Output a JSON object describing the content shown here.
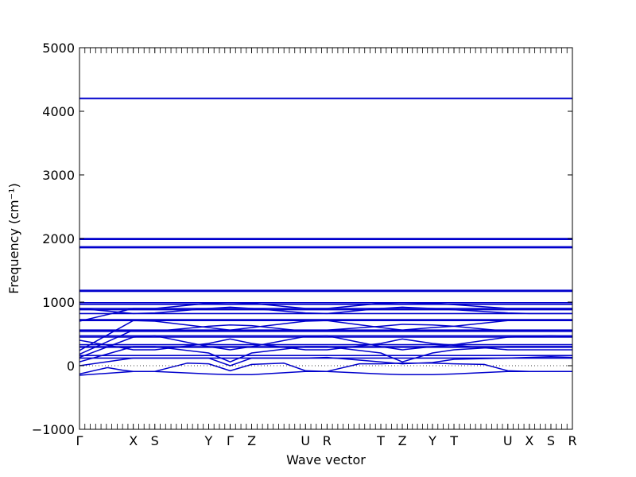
{
  "chart_data": {
    "type": "line",
    "title": "",
    "xlabel": "Wave vector",
    "ylabel": "Frequency (cm⁻¹)",
    "ylim": [
      -1000,
      5000
    ],
    "yticks": [
      -1000,
      0,
      1000,
      2000,
      3000,
      4000,
      5000
    ],
    "ytick_labels": [
      "−1000",
      "0",
      "1000",
      "2000",
      "3000",
      "4000",
      "5000"
    ],
    "xlim": [
      0,
      22.9
    ],
    "high_symmetry_points": [
      {
        "label": "Γ",
        "x": 0
      },
      {
        "label": "X",
        "x": 2.5
      },
      {
        "label": "S",
        "x": 3.5
      },
      {
        "label": "Y",
        "x": 6.0
      },
      {
        "label": "Γ",
        "x": 7.0
      },
      {
        "label": "Z",
        "x": 8.0
      },
      {
        "label": "U",
        "x": 10.5
      },
      {
        "label": "R",
        "x": 11.5
      },
      {
        "label": "T",
        "x": 14.0
      },
      {
        "label": "Z",
        "x": 15.0
      },
      {
        "label": "Y",
        "x": 16.4
      },
      {
        "label": "T",
        "x": 17.4
      },
      {
        "label": "U",
        "x": 19.9
      },
      {
        "label": "X",
        "x": 20.9
      },
      {
        "label": "S",
        "x": 21.9
      },
      {
        "label": "R",
        "x": 22.9
      }
    ],
    "zero_line": true,
    "series_color": "#0000cc",
    "flat_bands": [
      4200,
      4205,
      2000,
      1985,
      1870,
      1855,
      1185,
      1170,
      990,
      965,
      900,
      880,
      820,
      725,
      710,
      560,
      540,
      470,
      450,
      330,
      300,
      290,
      160,
      120
    ],
    "dispersive_bands": [
      {
        "points": [
          [
            0,
            -150
          ],
          [
            2.5,
            -90
          ],
          [
            3.5,
            -90
          ],
          [
            6.0,
            -130
          ],
          [
            7.0,
            -140
          ],
          [
            8.0,
            -140
          ],
          [
            10.5,
            -90
          ],
          [
            11.5,
            -90
          ],
          [
            14.0,
            -130
          ],
          [
            15.0,
            -140
          ],
          [
            16.4,
            -140
          ],
          [
            17.4,
            -130
          ],
          [
            19.9,
            -90
          ],
          [
            20.9,
            -90
          ],
          [
            21.9,
            -90
          ],
          [
            22.9,
            -90
          ]
        ]
      },
      {
        "points": [
          [
            0,
            -130
          ],
          [
            1.3,
            -30
          ],
          [
            2.0,
            -70
          ],
          [
            2.5,
            -90
          ],
          [
            3.5,
            -90
          ],
          [
            5.0,
            40
          ],
          [
            6.0,
            30
          ],
          [
            7.0,
            -80
          ],
          [
            8.0,
            20
          ],
          [
            9.5,
            40
          ],
          [
            10.5,
            -80
          ],
          [
            11.5,
            -90
          ],
          [
            13.0,
            30
          ],
          [
            14.0,
            30
          ],
          [
            15.0,
            40
          ],
          [
            16.4,
            40
          ],
          [
            17.4,
            30
          ],
          [
            18.8,
            20
          ],
          [
            19.9,
            -80
          ],
          [
            20.9,
            -90
          ],
          [
            21.9,
            -90
          ],
          [
            22.9,
            -90
          ]
        ]
      },
      {
        "points": [
          [
            0,
            0
          ],
          [
            2.5,
            120
          ],
          [
            3.5,
            120
          ],
          [
            6.0,
            120
          ],
          [
            7.0,
            0
          ],
          [
            8.0,
            120
          ],
          [
            10.5,
            120
          ],
          [
            11.5,
            130
          ],
          [
            14.0,
            60
          ],
          [
            15.0,
            30
          ],
          [
            16.4,
            50
          ],
          [
            17.4,
            100
          ],
          [
            19.9,
            120
          ],
          [
            20.9,
            130
          ],
          [
            21.9,
            140
          ],
          [
            22.9,
            130
          ]
        ]
      },
      {
        "points": [
          [
            0,
            60
          ],
          [
            2.5,
            300
          ],
          [
            3.5,
            300
          ],
          [
            6.0,
            200
          ],
          [
            7.0,
            60
          ],
          [
            8.0,
            200
          ],
          [
            10.5,
            300
          ],
          [
            11.5,
            300
          ],
          [
            14.0,
            200
          ],
          [
            15.0,
            60
          ],
          [
            16.4,
            200
          ],
          [
            17.4,
            250
          ],
          [
            19.9,
            300
          ],
          [
            20.9,
            300
          ],
          [
            21.9,
            300
          ],
          [
            22.9,
            300
          ]
        ]
      },
      {
        "points": [
          [
            0,
            130
          ],
          [
            2.5,
            450
          ],
          [
            3.5,
            470
          ],
          [
            6.0,
            300
          ],
          [
            7.0,
            250
          ],
          [
            8.0,
            300
          ],
          [
            10.5,
            460
          ],
          [
            11.5,
            470
          ],
          [
            14.0,
            300
          ],
          [
            15.0,
            250
          ],
          [
            16.4,
            300
          ],
          [
            17.4,
            330
          ],
          [
            19.9,
            450
          ],
          [
            20.9,
            460
          ],
          [
            21.9,
            470
          ],
          [
            22.9,
            460
          ]
        ]
      },
      {
        "points": [
          [
            0,
            180
          ],
          [
            2.5,
            560
          ],
          [
            3.5,
            540
          ],
          [
            6.0,
            620
          ],
          [
            7.0,
            640
          ],
          [
            8.0,
            630
          ],
          [
            10.5,
            540
          ],
          [
            11.5,
            560
          ],
          [
            14.0,
            620
          ],
          [
            15.0,
            650
          ],
          [
            16.4,
            640
          ],
          [
            17.4,
            620
          ],
          [
            19.9,
            540
          ],
          [
            20.9,
            560
          ],
          [
            21.9,
            550
          ],
          [
            22.9,
            560
          ]
        ]
      },
      {
        "points": [
          [
            0,
            240
          ],
          [
            2.5,
            710
          ],
          [
            3.5,
            700
          ],
          [
            6.0,
            600
          ],
          [
            7.0,
            560
          ],
          [
            8.0,
            600
          ],
          [
            10.5,
            700
          ],
          [
            11.5,
            710
          ],
          [
            14.0,
            600
          ],
          [
            15.0,
            560
          ],
          [
            16.4,
            600
          ],
          [
            17.4,
            620
          ],
          [
            19.9,
            710
          ],
          [
            20.9,
            720
          ],
          [
            21.9,
            720
          ],
          [
            22.9,
            720
          ]
        ]
      },
      {
        "points": [
          [
            0,
            700
          ],
          [
            2.5,
            900
          ],
          [
            3.5,
            900
          ],
          [
            6.0,
            980
          ],
          [
            7.0,
            990
          ],
          [
            8.0,
            980
          ],
          [
            10.5,
            900
          ],
          [
            11.5,
            900
          ],
          [
            14.0,
            980
          ],
          [
            15.0,
            990
          ],
          [
            16.4,
            980
          ],
          [
            17.4,
            960
          ],
          [
            19.9,
            900
          ],
          [
            20.9,
            900
          ],
          [
            21.9,
            900
          ],
          [
            22.9,
            900
          ]
        ]
      },
      {
        "points": [
          [
            0,
            900
          ],
          [
            2.5,
            820
          ],
          [
            3.5,
            830
          ],
          [
            6.0,
            900
          ],
          [
            7.0,
            920
          ],
          [
            8.0,
            900
          ],
          [
            10.5,
            830
          ],
          [
            11.5,
            820
          ],
          [
            14.0,
            900
          ],
          [
            15.0,
            920
          ],
          [
            16.4,
            900
          ],
          [
            17.4,
            880
          ],
          [
            19.9,
            830
          ],
          [
            20.9,
            820
          ],
          [
            21.9,
            820
          ],
          [
            22.9,
            820
          ]
        ]
      },
      {
        "points": [
          [
            0,
            400
          ],
          [
            2.5,
            250
          ],
          [
            3.5,
            250
          ],
          [
            6.0,
            350
          ],
          [
            7.0,
            420
          ],
          [
            8.0,
            350
          ],
          [
            10.5,
            250
          ],
          [
            11.5,
            250
          ],
          [
            14.0,
            350
          ],
          [
            15.0,
            420
          ],
          [
            16.4,
            350
          ],
          [
            17.4,
            320
          ],
          [
            19.9,
            250
          ],
          [
            20.9,
            250
          ],
          [
            21.9,
            250
          ],
          [
            22.9,
            250
          ]
        ]
      }
    ]
  }
}
